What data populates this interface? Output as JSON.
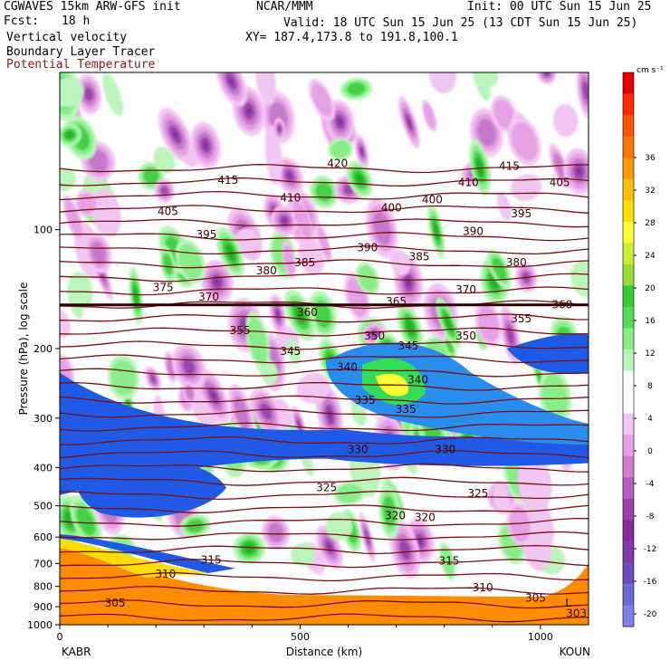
{
  "header": {
    "model": "CGWAVES 15km ARW-GFS init",
    "fcst_label": "Fcst:",
    "fcst_value": "18 h",
    "field1": "Vertical velocity",
    "field2": "Boundary Layer Tracer",
    "field3": "Potential Temperature",
    "center": "NCAR/MMM",
    "init": "Init: 00 UTC Sun 15 Jun 25",
    "valid": "Valid: 18 UTC Sun 15 Jun 25 (13 CDT Sun 15 Jun 25)",
    "xy": "XY= 187.4,173.8 to 191.8,100.1"
  },
  "colors": {
    "theta_line": "#7a0f0f",
    "tracer_orange": "#ff8c00",
    "tracer_blue": "#1e5ae6"
  },
  "chart_data": {
    "type": "heatmap",
    "xlabel": "Distance (km)",
    "ylabel": "Pressure (hPa), log scale",
    "x_ticks": [
      0,
      500,
      1000
    ],
    "xlim": [
      0,
      1100
    ],
    "y_ticks": [
      100,
      200,
      300,
      400,
      500,
      600,
      700,
      800,
      900,
      1000
    ],
    "ylim": [
      1000,
      40
    ],
    "y_scale": "log",
    "left_endpoint": "KABR",
    "right_endpoint": "KOUN",
    "colorbar": {
      "units": "cm s⁻¹",
      "labels": [
        36,
        32,
        28,
        24,
        20,
        16,
        12,
        8,
        4,
        0,
        -4,
        -8,
        -12,
        -16,
        -20
      ],
      "colors": [
        "#e60000",
        "#ff2a00",
        "#ff5500",
        "#ff7700",
        "#ff9900",
        "#ffbb00",
        "#ffdd00",
        "#ffff33",
        "#ccee33",
        "#99dd33",
        "#33cc33",
        "#55dd55",
        "#88ee88",
        "#bbf5bb",
        "#ffffff",
        "#ffffff",
        "#f2c6f2",
        "#e6a0e6",
        "#d27dd2",
        "#b95cc0",
        "#9e3fb0",
        "#8a2a9e",
        "#7d3aa8",
        "#6a4cc0",
        "#6a6ad8",
        "#8080e6"
      ]
    },
    "theta_labels": [
      {
        "value": "415",
        "x": 350,
        "p": 75
      },
      {
        "value": "420",
        "x": 578,
        "p": 68
      },
      {
        "value": "415",
        "x": 935,
        "p": 69
      },
      {
        "value": "410",
        "x": 480,
        "p": 83
      },
      {
        "value": "410",
        "x": 850,
        "p": 76
      },
      {
        "value": "405",
        "x": 225,
        "p": 90
      },
      {
        "value": "405",
        "x": 1040,
        "p": 76
      },
      {
        "value": "400",
        "x": 690,
        "p": 88
      },
      {
        "value": "400",
        "x": 775,
        "p": 84
      },
      {
        "value": "395",
        "x": 305,
        "p": 103
      },
      {
        "value": "395",
        "x": 960,
        "p": 91
      },
      {
        "value": "390",
        "x": 640,
        "p": 111
      },
      {
        "value": "390",
        "x": 860,
        "p": 101
      },
      {
        "value": "385",
        "x": 510,
        "p": 121
      },
      {
        "value": "385",
        "x": 748,
        "p": 117
      },
      {
        "value": "380",
        "x": 430,
        "p": 127
      },
      {
        "value": "380",
        "x": 950,
        "p": 121
      },
      {
        "value": "375",
        "x": 215,
        "p": 140
      },
      {
        "value": "370",
        "x": 310,
        "p": 148
      },
      {
        "value": "370",
        "x": 845,
        "p": 142
      },
      {
        "value": "365",
        "x": 700,
        "p": 152
      },
      {
        "value": "360",
        "x": 515,
        "p": 162
      },
      {
        "value": "360",
        "x": 1045,
        "p": 155
      },
      {
        "value": "355",
        "x": 375,
        "p": 180
      },
      {
        "value": "355",
        "x": 960,
        "p": 168
      },
      {
        "value": "350",
        "x": 655,
        "p": 186
      },
      {
        "value": "350",
        "x": 845,
        "p": 186
      },
      {
        "value": "345",
        "x": 480,
        "p": 203
      },
      {
        "value": "345",
        "x": 725,
        "p": 197
      },
      {
        "value": "340",
        "x": 598,
        "p": 223
      },
      {
        "value": "340",
        "x": 745,
        "p": 240
      },
      {
        "value": "335",
        "x": 635,
        "p": 270
      },
      {
        "value": "335",
        "x": 720,
        "p": 285
      },
      {
        "value": "330",
        "x": 620,
        "p": 360
      },
      {
        "value": "330",
        "x": 802,
        "p": 360
      },
      {
        "value": "325",
        "x": 555,
        "p": 450
      },
      {
        "value": "325",
        "x": 870,
        "p": 465
      },
      {
        "value": "320",
        "x": 698,
        "p": 530
      },
      {
        "value": "320",
        "x": 760,
        "p": 535
      },
      {
        "value": "315",
        "x": 315,
        "p": 685
      },
      {
        "value": "315",
        "x": 810,
        "p": 690
      },
      {
        "value": "310",
        "x": 220,
        "p": 745
      },
      {
        "value": "310",
        "x": 880,
        "p": 805
      },
      {
        "value": "305",
        "x": 115,
        "p": 880
      },
      {
        "value": "305",
        "x": 990,
        "p": 855
      },
      {
        "value": "303",
        "x": 1075,
        "p": 935
      }
    ],
    "annotations": [
      {
        "text": "L",
        "x": 1058,
        "p": 880
      }
    ]
  }
}
